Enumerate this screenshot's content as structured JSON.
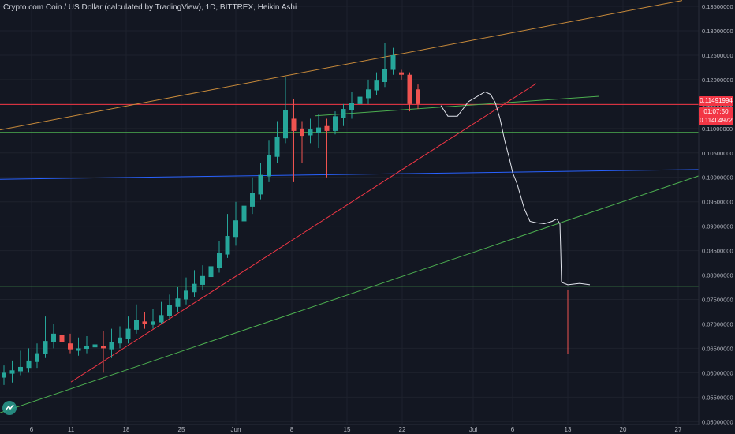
{
  "header": {
    "title": "Crypto.com Coin / US Dollar (calculated by TradingView), 1D, BITTREX, Heikin Ashi"
  },
  "price_tags": {
    "last_price": "0.11491994",
    "countdown": "01:07:50",
    "open_price": "0.11404972"
  },
  "colors": {
    "background": "#131722",
    "bull": "#26a69a",
    "bear": "#ef5350",
    "red_line": "#f23645",
    "green_line": "#4caf50",
    "blue_line": "#2962ff",
    "orange_line": "#c88a3a",
    "axis_text": "#b2b5be"
  },
  "chart_data": {
    "type": "candlestick",
    "style": "Heikin Ashi",
    "interval": "1D",
    "exchange": "BITTREX",
    "x_ticks": [
      "6",
      "11",
      "18",
      "25",
      "Jun",
      "8",
      "15",
      "22",
      "Jul",
      "6",
      "13",
      "20",
      "27"
    ],
    "y_ticks": [
      "0.13500000",
      "0.13000000",
      "0.12500000",
      "0.12000000",
      "0.11500000",
      "0.11000000",
      "0.10500000",
      "0.10000000",
      "0.09500000",
      "0.09000000",
      "0.08500000",
      "0.08000000",
      "0.07500000",
      "0.07000000",
      "0.06500000",
      "0.06000000",
      "0.05500000",
      "0.05000000"
    ],
    "ylim": [
      0.0494,
      0.1363
    ],
    "candles": [
      {
        "o": 0.059,
        "c": 0.06,
        "h": 0.0615,
        "l": 0.0575
      },
      {
        "o": 0.0598,
        "c": 0.0605,
        "h": 0.0625,
        "l": 0.058
      },
      {
        "o": 0.0603,
        "c": 0.0612,
        "h": 0.0645,
        "l": 0.0595
      },
      {
        "o": 0.061,
        "c": 0.0625,
        "h": 0.065,
        "l": 0.06
      },
      {
        "o": 0.0622,
        "c": 0.064,
        "h": 0.066,
        "l": 0.061
      },
      {
        "o": 0.0638,
        "c": 0.0665,
        "h": 0.0715,
        "l": 0.063
      },
      {
        "o": 0.0662,
        "c": 0.068,
        "h": 0.07,
        "l": 0.065
      },
      {
        "o": 0.0678,
        "c": 0.0662,
        "h": 0.069,
        "l": 0.0555
      },
      {
        "o": 0.066,
        "c": 0.0648,
        "h": 0.068,
        "l": 0.064
      },
      {
        "o": 0.0645,
        "c": 0.065,
        "h": 0.0672,
        "l": 0.0635
      },
      {
        "o": 0.0649,
        "c": 0.0655,
        "h": 0.0675,
        "l": 0.064
      },
      {
        "o": 0.0652,
        "c": 0.0658,
        "h": 0.068,
        "l": 0.0645
      },
      {
        "o": 0.0655,
        "c": 0.065,
        "h": 0.0685,
        "l": 0.06
      },
      {
        "o": 0.0648,
        "c": 0.0662,
        "h": 0.069,
        "l": 0.063
      },
      {
        "o": 0.066,
        "c": 0.0672,
        "h": 0.0695,
        "l": 0.065
      },
      {
        "o": 0.067,
        "c": 0.069,
        "h": 0.0715,
        "l": 0.066
      },
      {
        "o": 0.0688,
        "c": 0.0708,
        "h": 0.074,
        "l": 0.068
      },
      {
        "o": 0.0705,
        "c": 0.07,
        "h": 0.0725,
        "l": 0.069
      },
      {
        "o": 0.0698,
        "c": 0.0705,
        "h": 0.073,
        "l": 0.069
      },
      {
        "o": 0.0703,
        "c": 0.0718,
        "h": 0.0745,
        "l": 0.07
      },
      {
        "o": 0.0716,
        "c": 0.0738,
        "h": 0.076,
        "l": 0.071
      },
      {
        "o": 0.0735,
        "c": 0.0752,
        "h": 0.0775,
        "l": 0.0725
      },
      {
        "o": 0.075,
        "c": 0.0768,
        "h": 0.0795,
        "l": 0.074
      },
      {
        "o": 0.0765,
        "c": 0.0782,
        "h": 0.081,
        "l": 0.0755
      },
      {
        "o": 0.078,
        "c": 0.0798,
        "h": 0.082,
        "l": 0.077
      },
      {
        "o": 0.0796,
        "c": 0.0818,
        "h": 0.084,
        "l": 0.079
      },
      {
        "o": 0.0815,
        "c": 0.0845,
        "h": 0.087,
        "l": 0.0805
      },
      {
        "o": 0.0842,
        "c": 0.088,
        "h": 0.0925,
        "l": 0.0835
      },
      {
        "o": 0.0878,
        "c": 0.0912,
        "h": 0.095,
        "l": 0.086
      },
      {
        "o": 0.091,
        "c": 0.0942,
        "h": 0.0985,
        "l": 0.0895
      },
      {
        "o": 0.094,
        "c": 0.0968,
        "h": 0.1,
        "l": 0.0925
      },
      {
        "o": 0.0965,
        "c": 0.1005,
        "h": 0.103,
        "l": 0.0955
      },
      {
        "o": 0.1002,
        "c": 0.1045,
        "h": 0.1075,
        "l": 0.099
      },
      {
        "o": 0.1042,
        "c": 0.1082,
        "h": 0.1115,
        "l": 0.103
      },
      {
        "o": 0.108,
        "c": 0.1138,
        "h": 0.1205,
        "l": 0.107
      },
      {
        "o": 0.112,
        "c": 0.1095,
        "h": 0.116,
        "l": 0.099
      },
      {
        "o": 0.11,
        "c": 0.1085,
        "h": 0.1115,
        "l": 0.103
      },
      {
        "o": 0.1086,
        "c": 0.1098,
        "h": 0.112,
        "l": 0.107
      },
      {
        "o": 0.109,
        "c": 0.1102,
        "h": 0.113,
        "l": 0.106
      },
      {
        "o": 0.1105,
        "c": 0.1095,
        "h": 0.112,
        "l": 0.1
      },
      {
        "o": 0.1095,
        "c": 0.1125,
        "h": 0.1135,
        "l": 0.1088
      },
      {
        "o": 0.1122,
        "c": 0.114,
        "h": 0.115,
        "l": 0.1105
      },
      {
        "o": 0.1138,
        "c": 0.1152,
        "h": 0.1175,
        "l": 0.112
      },
      {
        "o": 0.115,
        "c": 0.1165,
        "h": 0.1185,
        "l": 0.1135
      },
      {
        "o": 0.1162,
        "c": 0.118,
        "h": 0.12,
        "l": 0.115
      },
      {
        "o": 0.1178,
        "c": 0.1198,
        "h": 0.1215,
        "l": 0.1168
      },
      {
        "o": 0.1195,
        "c": 0.1222,
        "h": 0.1275,
        "l": 0.1185
      },
      {
        "o": 0.122,
        "c": 0.125,
        "h": 0.1265,
        "l": 0.121
      },
      {
        "o": 0.1215,
        "c": 0.121,
        "h": 0.122,
        "l": 0.12
      },
      {
        "o": 0.121,
        "c": 0.115,
        "h": 0.1215,
        "l": 0.1135
      },
      {
        "o": 0.118,
        "c": 0.115,
        "h": 0.119,
        "l": 0.114
      }
    ],
    "horizontal_levels": [
      {
        "color": "#f23645",
        "price": 0.11491994
      },
      {
        "color": "#4caf50",
        "price": 0.1092
      },
      {
        "color": "#4caf50",
        "price": 0.0777
      }
    ],
    "trend_lines": [
      {
        "color": "#c88a3a",
        "from": [
          0,
          0.1097
        ],
        "to": [
          865,
          0.1362
        ]
      },
      {
        "color": "#2962ff",
        "from": [
          0,
          0.0996
        ],
        "to": [
          886,
          0.1016
        ]
      },
      {
        "color": "#4caf50",
        "from": [
          400,
          0.1126
        ],
        "to": [
          760,
          0.1166
        ]
      },
      {
        "color": "#4caf50",
        "from": [
          0,
          0.0518
        ],
        "to": [
          886,
          0.1003
        ]
      },
      {
        "color": "#f23645",
        "from": [
          90,
          0.0581
        ],
        "to": [
          680,
          0.1192
        ]
      }
    ],
    "projection_path": [
      [
        559,
        0.1147
      ],
      [
        568,
        0.1125
      ],
      [
        580,
        0.1125
      ],
      [
        594,
        0.1155
      ],
      [
        615,
        0.1175
      ],
      [
        622,
        0.117
      ],
      [
        628,
        0.1153
      ],
      [
        634,
        0.112
      ],
      [
        640,
        0.1075
      ],
      [
        646,
        0.1038
      ],
      [
        650,
        0.101
      ],
      [
        656,
        0.0985
      ],
      [
        661,
        0.0957
      ],
      [
        665,
        0.0935
      ],
      [
        672,
        0.091
      ],
      [
        680,
        0.0907
      ],
      [
        690,
        0.0905
      ],
      [
        700,
        0.091
      ],
      [
        706,
        0.0915
      ],
      [
        710,
        0.0905
      ],
      [
        711,
        0.085
      ],
      [
        712,
        0.0785
      ],
      [
        720,
        0.078
      ],
      [
        735,
        0.0783
      ],
      [
        748,
        0.078
      ]
    ],
    "pending_wick": {
      "x": 720,
      "from": 0.077,
      "to": 0.0638
    }
  }
}
